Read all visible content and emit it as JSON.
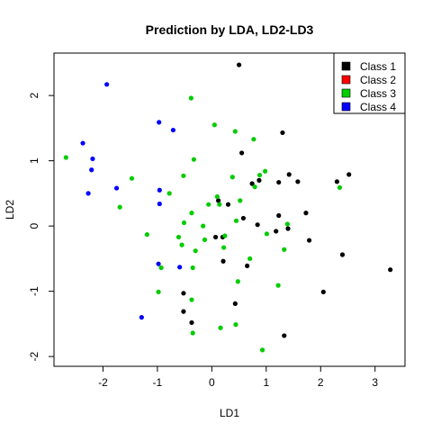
{
  "chart_data": {
    "type": "scatter",
    "title": "Prediction by LDA, LD2-LD3",
    "xlabel": "LD1",
    "ylabel": "LD2",
    "xlim": [
      -2.9,
      3.55
    ],
    "ylim": [
      -2.15,
      2.65
    ],
    "x_ticks": [
      -2,
      -1,
      0,
      1,
      2,
      3
    ],
    "y_ticks": [
      -2,
      -1,
      0,
      1,
      2
    ],
    "grid": false,
    "legend_position": "top-right",
    "series": [
      {
        "name": "Class 1",
        "color": "#000000",
        "points": [
          [
            0.5,
            2.47
          ],
          [
            1.3,
            1.43
          ],
          [
            0.55,
            1.12
          ],
          [
            1.42,
            0.79
          ],
          [
            2.52,
            0.79
          ],
          [
            2.3,
            0.68
          ],
          [
            1.58,
            0.68
          ],
          [
            1.23,
            0.67
          ],
          [
            0.87,
            0.7
          ],
          [
            0.74,
            0.65
          ],
          [
            0.12,
            0.39
          ],
          [
            0.3,
            0.33
          ],
          [
            1.73,
            0.2
          ],
          [
            1.23,
            0.16
          ],
          [
            0.58,
            0.12
          ],
          [
            0.84,
            0.02
          ],
          [
            1.4,
            -0.04
          ],
          [
            1.18,
            -0.08
          ],
          [
            0.07,
            -0.17
          ],
          [
            0.2,
            -0.17
          ],
          [
            1.79,
            -0.22
          ],
          [
            2.4,
            -0.44
          ],
          [
            0.65,
            -0.61
          ],
          [
            0.21,
            -0.54
          ],
          [
            3.28,
            -0.67
          ],
          [
            2.05,
            -1.01
          ],
          [
            -0.52,
            -1.03
          ],
          [
            0.43,
            -1.19
          ],
          [
            -0.52,
            -1.31
          ],
          [
            -0.37,
            -1.48
          ],
          [
            1.33,
            -1.68
          ]
        ]
      },
      {
        "name": "Class 2",
        "color": "#ff0000",
        "points": []
      },
      {
        "name": "Class 3",
        "color": "#00cc00",
        "points": [
          [
            -0.38,
            1.96
          ],
          [
            0.05,
            1.55
          ],
          [
            0.43,
            1.45
          ],
          [
            0.77,
            1.33
          ],
          [
            -0.33,
            1.02
          ],
          [
            -2.68,
            1.05
          ],
          [
            0.98,
            0.84
          ],
          [
            -0.52,
            0.77
          ],
          [
            -1.47,
            0.73
          ],
          [
            0.38,
            0.75
          ],
          [
            0.88,
            0.78
          ],
          [
            -0.78,
            0.5
          ],
          [
            0.1,
            0.45
          ],
          [
            0.14,
            0.33
          ],
          [
            -0.06,
            0.33
          ],
          [
            0.79,
            0.6
          ],
          [
            2.35,
            0.59
          ],
          [
            -1.69,
            0.29
          ],
          [
            0.52,
            0.39
          ],
          [
            -0.37,
            0.2
          ],
          [
            0.45,
            0.08
          ],
          [
            -0.51,
            0.05
          ],
          [
            -0.16,
            0.0
          ],
          [
            1.39,
            0.03
          ],
          [
            1.01,
            -0.12
          ],
          [
            -1.19,
            -0.13
          ],
          [
            -0.61,
            -0.17
          ],
          [
            0.24,
            -0.15
          ],
          [
            -0.13,
            -0.21
          ],
          [
            -0.55,
            -0.29
          ],
          [
            -0.3,
            -0.38
          ],
          [
            0.22,
            -0.33
          ],
          [
            1.33,
            -0.36
          ],
          [
            0.7,
            -0.5
          ],
          [
            -0.93,
            -0.64
          ],
          [
            -0.35,
            -0.64
          ],
          [
            0.48,
            -0.85
          ],
          [
            1.22,
            -0.91
          ],
          [
            -0.98,
            -1.01
          ],
          [
            -0.37,
            -1.13
          ],
          [
            0.44,
            -1.51
          ],
          [
            0.16,
            -1.56
          ],
          [
            -0.35,
            -1.64
          ],
          [
            0.93,
            -1.9
          ]
        ]
      },
      {
        "name": "Class 4",
        "color": "#0000ff",
        "points": [
          [
            -1.93,
            2.17
          ],
          [
            -0.97,
            1.59
          ],
          [
            -0.71,
            1.47
          ],
          [
            -2.37,
            1.27
          ],
          [
            -2.19,
            1.03
          ],
          [
            -2.21,
            0.86
          ],
          [
            -1.75,
            0.58
          ],
          [
            -0.96,
            0.55
          ],
          [
            -2.27,
            0.5
          ],
          [
            -0.96,
            0.34
          ],
          [
            -0.98,
            -0.58
          ],
          [
            -0.59,
            -0.63
          ],
          [
            -1.29,
            -1.4
          ]
        ]
      }
    ]
  }
}
